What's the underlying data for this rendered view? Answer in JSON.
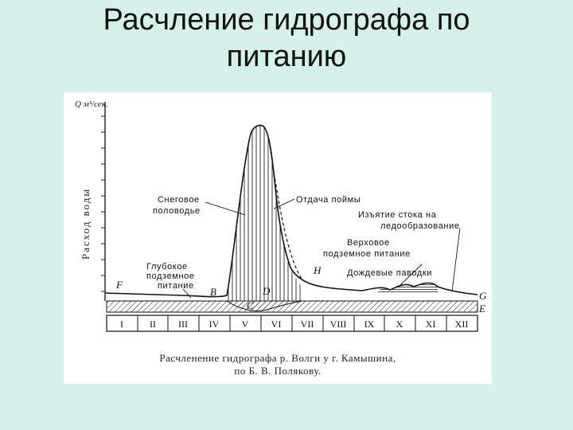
{
  "slide": {
    "title_line1": "Расчление гидрографа по",
    "title_line2": "питанию"
  },
  "figure": {
    "y_axis_label": "Расход воды",
    "y_unit_label": "Q м³/сек.",
    "annotations": {
      "snow_flood": [
        "Снеговое",
        "половодье"
      ],
      "floodplain_return": "Отдача поймы",
      "ice_withdrawal": [
        "Изъятие стока на",
        "ледообразование"
      ],
      "upper_ground": [
        "Верховое",
        "подземное питание"
      ],
      "rain_floods": "Дождевые паводки",
      "deep_ground": [
        "Глубокое",
        "подземное",
        "питание"
      ]
    },
    "point_letters": [
      "F",
      "B",
      "C",
      "D",
      "H",
      "G",
      "E"
    ],
    "months": [
      "I",
      "II",
      "III",
      "IV",
      "V",
      "VI",
      "VII",
      "VIII",
      "IX",
      "X",
      "XI",
      "XII"
    ],
    "caption_line1": "Расчленение гидрографа р. Волги у г. Камышина,",
    "caption_line2": "по Б. В. Полякову."
  }
}
